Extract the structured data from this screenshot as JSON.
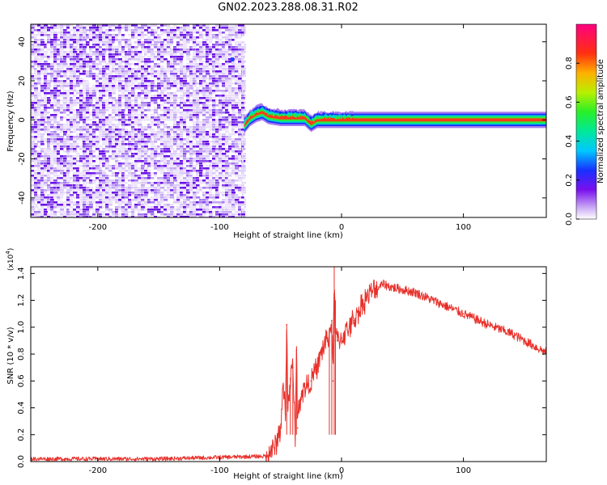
{
  "figure": {
    "title": "GN02.2023.288.08.31.R02"
  },
  "chart_data": [
    {
      "type": "heatmap",
      "title": "GN02.2023.288.08.31.R02",
      "xlabel": "Height of straight line (km)",
      "ylabel": "Frequency (Hz)",
      "xlim": [
        -255,
        168
      ],
      "ylim": [
        -50,
        49
      ],
      "x_ticks": [
        "-200",
        "-100",
        "0",
        "100"
      ],
      "y_ticks": [
        "40",
        "20",
        "0",
        "-20",
        "-40"
      ],
      "grid": false,
      "description_of_values": {
        "noise_region_x": [
          -255,
          -82
        ],
        "signal_track": [
          {
            "x": -80,
            "freq": -3
          },
          {
            "x": -75,
            "freq": 1
          },
          {
            "x": -70,
            "freq": 3
          },
          {
            "x": -65,
            "freq": 4
          },
          {
            "x": -60,
            "freq": 2
          },
          {
            "x": -50,
            "freq": 1
          },
          {
            "x": -40,
            "freq": 1
          },
          {
            "x": -30,
            "freq": 1
          },
          {
            "x": -25,
            "freq": -2
          },
          {
            "x": -20,
            "freq": 0
          },
          {
            "x": 0,
            "freq": 0
          },
          {
            "x": 168,
            "freq": 0
          }
        ]
      },
      "colorbar": {
        "label": "Normalized spectral amplitude",
        "range": [
          0,
          1
        ],
        "ticks": [
          "0.0",
          "0.2",
          "0.4",
          "0.6",
          "0.8"
        ]
      }
    },
    {
      "type": "line",
      "xlabel": "Height of straight line (km)",
      "ylabel": "SNR (10 * v/v)",
      "y_multiplier": "(x10",
      "y_multiplier_exp": "4",
      "xlim": [
        -255,
        168
      ],
      "ylim": [
        0,
        1.45
      ],
      "x_ticks": [
        "-200",
        "-100",
        "0",
        "100"
      ],
      "y_ticks": [
        "0.0",
        "0.2",
        "0.4",
        "0.6",
        "0.8",
        "1.0",
        "1.2",
        "1.4"
      ],
      "grid": false,
      "color": "#e8302a",
      "series": [
        {
          "x": [
            -255,
            -150,
            -62,
            -55,
            -50,
            -48,
            -46,
            -45,
            -44,
            -42,
            -40,
            -38,
            -37,
            -36,
            -35,
            -33,
            -30,
            -25,
            -20,
            -15,
            -10,
            -8,
            -7,
            -6,
            -5,
            -4,
            -3,
            0,
            10,
            20,
            30,
            35,
            40,
            60,
            80,
            100,
            120,
            140,
            168
          ],
          "y": [
            0.02,
            0.02,
            0.04,
            0.1,
            0.25,
            0.55,
            0.35,
            1.02,
            0.4,
            0.62,
            0.7,
            0.2,
            0.83,
            0.25,
            0.45,
            0.5,
            0.55,
            0.6,
            0.7,
            0.85,
            0.95,
            1.05,
            0.6,
            1.45,
            0.9,
            0.95,
            0.9,
            0.92,
            1.05,
            1.22,
            1.3,
            1.32,
            1.3,
            1.26,
            1.18,
            1.1,
            1.02,
            0.95,
            0.81
          ]
        }
      ]
    }
  ]
}
